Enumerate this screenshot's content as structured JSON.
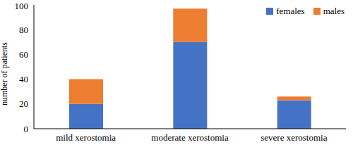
{
  "chart_data": {
    "type": "bar",
    "stacked": true,
    "y_label": "number of patients",
    "categories": [
      "mild xerostomia",
      "moderate xerostomia",
      "severe xerostomia"
    ],
    "series": [
      {
        "name": "females",
        "color": "#4472c4",
        "values": [
          20,
          70,
          23
        ]
      },
      {
        "name": "males",
        "color": "#ed7d31",
        "values": [
          20,
          27,
          3
        ]
      }
    ],
    "ylim": [
      0,
      100
    ],
    "yticks": [
      0,
      20,
      40,
      60,
      80,
      100
    ],
    "grid": false,
    "legend": "upper right"
  }
}
